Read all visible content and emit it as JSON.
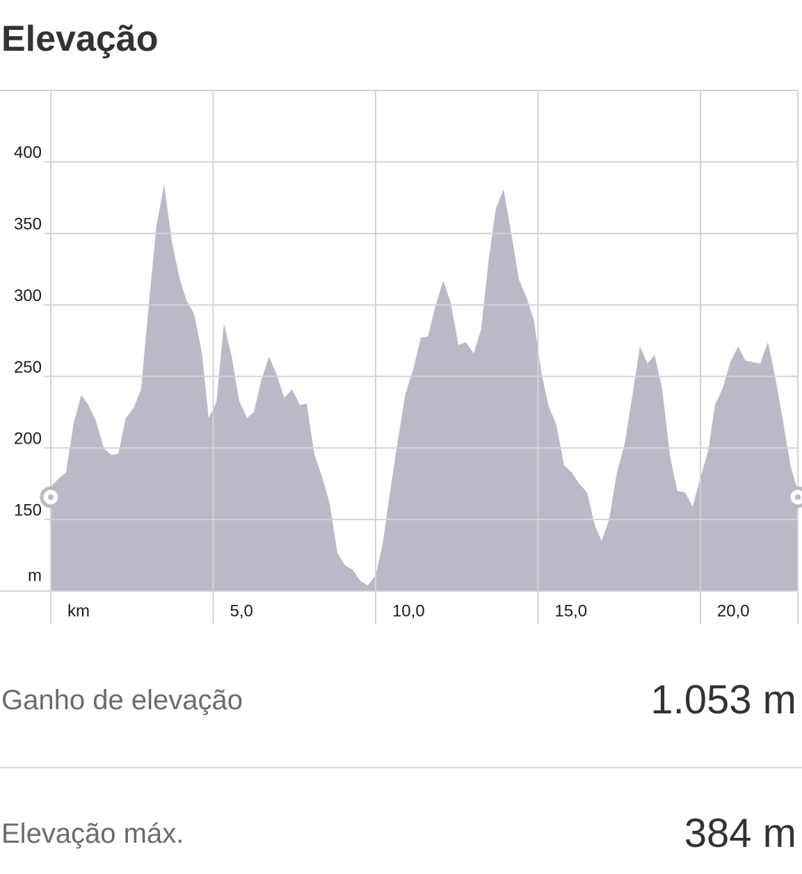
{
  "header": {
    "title": "Elevação"
  },
  "chart_data": {
    "type": "area",
    "xlabel": "km",
    "ylabel": "m",
    "xlim": [
      0,
      23
    ],
    "ylim": [
      100,
      450
    ],
    "xticks": [
      {
        "value": 5,
        "label": "5,0"
      },
      {
        "value": 10,
        "label": "10,0"
      },
      {
        "value": 15,
        "label": "15,0"
      },
      {
        "value": 20,
        "label": "20,0"
      }
    ],
    "yticks": [
      150,
      200,
      250,
      300,
      350,
      400
    ],
    "grid": true,
    "color": "#babac6",
    "x": [
      0,
      0.21,
      0.47,
      0.71,
      0.94,
      1.16,
      1.39,
      1.63,
      1.86,
      2.08,
      2.31,
      2.55,
      2.78,
      3.02,
      3.25,
      3.49,
      3.73,
      3.96,
      4.18,
      4.41,
      4.65,
      4.86,
      5.1,
      5.33,
      5.57,
      5.8,
      6.04,
      6.25,
      6.49,
      6.72,
      6.96,
      7.19,
      7.43,
      7.67,
      7.88,
      8.12,
      8.35,
      8.59,
      8.82,
      9.06,
      9.29,
      9.53,
      9.76,
      10,
      10.21,
      10.45,
      10.69,
      10.92,
      11.16,
      11.39,
      11.61,
      11.84,
      12.08,
      12.31,
      12.55,
      12.78,
      13.02,
      13.25,
      13.49,
      13.7,
      13.94,
      14.18,
      14.41,
      14.65,
      14.88,
      15.1,
      15.33,
      15.57,
      15.8,
      16.04,
      16.27,
      16.51,
      16.75,
      16.96,
      17.19,
      17.43,
      17.67,
      17.9,
      18.14,
      18.37,
      18.59,
      18.82,
      19.06,
      19.29,
      19.53,
      19.76,
      20,
      20.24,
      20.45,
      20.69,
      20.92,
      21.16,
      21.39,
      21.63,
      21.84,
      22.08,
      22.31,
      22.55,
      22.78,
      23
    ],
    "values": [
      173,
      178,
      183,
      218,
      237,
      230,
      219,
      200,
      195,
      196,
      221,
      228,
      241,
      301,
      355,
      384,
      344,
      319,
      303,
      294,
      267,
      221,
      232,
      287,
      264,
      233,
      221,
      225,
      248,
      264,
      251,
      235,
      241,
      230,
      231,
      195,
      180,
      161,
      127,
      118,
      115,
      107,
      104,
      111,
      132,
      170,
      206,
      238,
      255,
      277,
      278,
      299,
      317,
      302,
      272,
      274,
      266,
      283,
      333,
      367,
      381,
      350,
      318,
      305,
      289,
      253,
      229,
      216,
      188,
      183,
      175,
      169,
      146,
      135,
      150,
      183,
      203,
      236,
      271,
      259,
      265,
      242,
      195,
      170,
      169,
      159,
      179,
      198,
      230,
      242,
      260,
      271,
      261,
      260,
      259,
      274,
      249,
      218,
      187,
      170
    ]
  },
  "stats": [
    {
      "label": "Ganho de elevação",
      "value": "1.053 m"
    },
    {
      "label": "Elevação máx.",
      "value": "384 m"
    }
  ]
}
